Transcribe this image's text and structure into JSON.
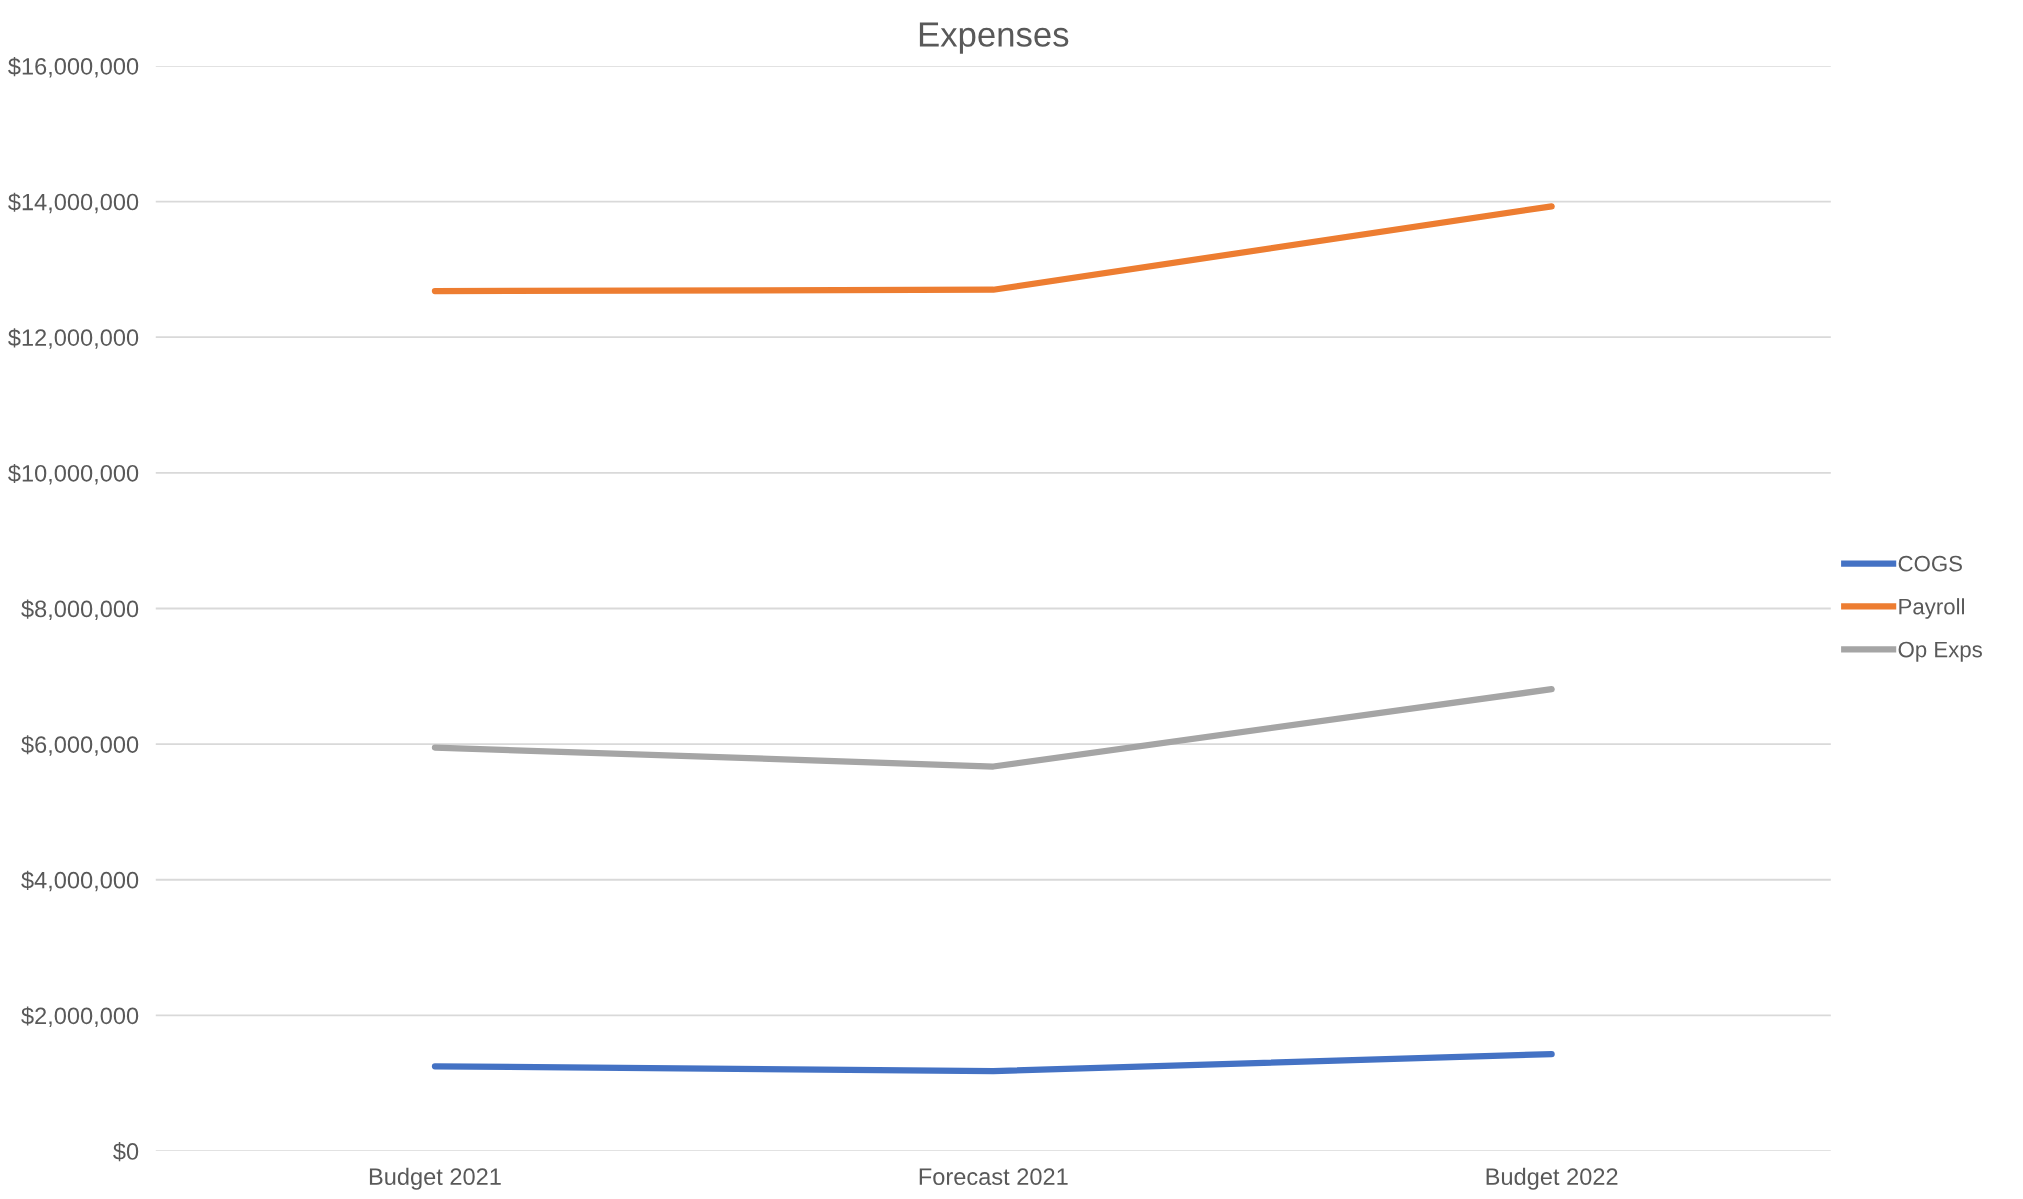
{
  "chart_data": {
    "type": "line",
    "title": "Expenses",
    "categories": [
      "Budget 2021",
      "Forecast 2021",
      "Budget 2022"
    ],
    "series": [
      {
        "name": "COGS",
        "color": "#4472c4",
        "values": [
          1250000,
          1180000,
          1430000
        ]
      },
      {
        "name": "Payroll",
        "color": "#ed7d31",
        "values": [
          12680000,
          12700000,
          13930000
        ]
      },
      {
        "name": "Op Exps",
        "color": "#a5a5a5",
        "values": [
          5950000,
          5670000,
          6810000
        ]
      }
    ],
    "ylim": [
      0,
      16000000
    ],
    "yticks": [
      {
        "value": 0,
        "label": "$0"
      },
      {
        "value": 2000000,
        "label": "$2,000,000"
      },
      {
        "value": 4000000,
        "label": "$4,000,000"
      },
      {
        "value": 6000000,
        "label": "$6,000,000"
      },
      {
        "value": 8000000,
        "label": "$8,000,000"
      },
      {
        "value": 10000000,
        "label": "$10,000,000"
      },
      {
        "value": 12000000,
        "label": "$12,000,000"
      },
      {
        "value": 14000000,
        "label": "$14,000,000"
      },
      {
        "value": 16000000,
        "label": "$16,000,000"
      }
    ],
    "grid": "y",
    "legend": "right",
    "marker": "none",
    "line_style": "solid"
  }
}
